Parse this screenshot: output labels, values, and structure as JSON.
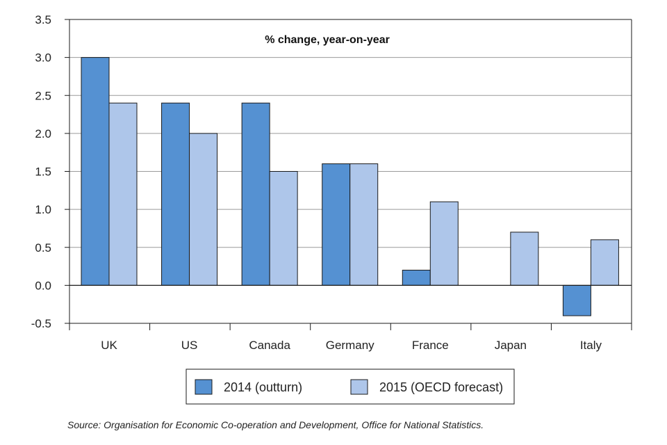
{
  "colors": {
    "series_2014": "#5591d2",
    "series_2015": "#aec6ea",
    "stroke": "#1a1a1a",
    "grid": "#9a9a9a"
  },
  "chart_data": {
    "type": "bar",
    "title": "% change, year-on-year",
    "xlabel": "",
    "ylabel": "",
    "categories": [
      "UK",
      "US",
      "Canada",
      "Germany",
      "France",
      "Japan",
      "Italy"
    ],
    "series": [
      {
        "name": "2014 (outturn)",
        "values": [
          3.0,
          2.4,
          2.4,
          1.6,
          0.2,
          0.0,
          -0.4
        ]
      },
      {
        "name": "2015 (OECD forecast)",
        "values": [
          2.4,
          2.0,
          1.5,
          1.6,
          1.1,
          0.7,
          0.6
        ]
      }
    ],
    "ylim": [
      -0.5,
      3.5
    ],
    "yticks": [
      "3.5",
      "3.0",
      "2.5",
      "2.0",
      "1.5",
      "1.0",
      "0.5",
      "0.0",
      "-0.5"
    ],
    "grid": true,
    "legend_position": "bottom-center"
  },
  "source": "Source: Organisation for Economic Co-operation and Development, Office for National Statistics."
}
